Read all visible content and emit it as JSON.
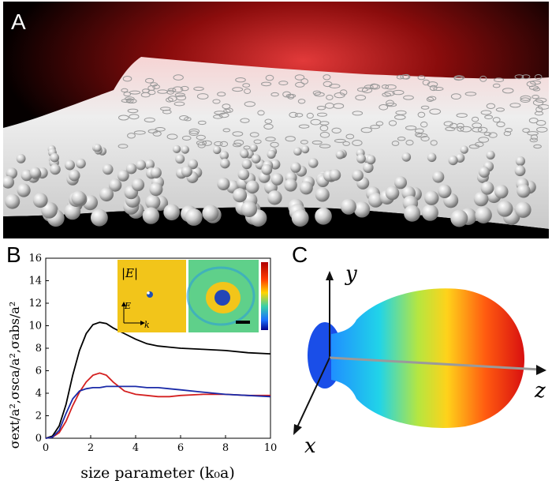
{
  "panel_a": {
    "letter": "A"
  },
  "panel_b": {
    "letter": "B",
    "inset": {
      "field_label": "|E|",
      "e_label": "E",
      "k_label": "k"
    },
    "chart_data": {
      "type": "line",
      "xlabel": "size parameter (k₀a)",
      "ylabel": "σext/a²,σsca/a²,σabs/a²",
      "xlim": [
        0,
        10
      ],
      "ylim": [
        0,
        16
      ],
      "x_ticks": [
        0,
        2,
        4,
        6,
        8,
        10
      ],
      "y_ticks": [
        0,
        2,
        4,
        6,
        8,
        10,
        12,
        14,
        16
      ],
      "grid": false,
      "series": [
        {
          "color": "#000000",
          "x": [
            0,
            0.3,
            0.6,
            0.9,
            1.2,
            1.5,
            1.8,
            2.1,
            2.4,
            2.7,
            3.0,
            3.5,
            4.0,
            4.5,
            5.0,
            5.5,
            6.0,
            7.0,
            8.0,
            9.0,
            10.0
          ],
          "values": [
            0,
            0.2,
            1.1,
            3.0,
            5.6,
            7.8,
            9.3,
            10.1,
            10.3,
            10.2,
            9.8,
            9.3,
            8.8,
            8.4,
            8.2,
            8.1,
            8.0,
            7.9,
            7.8,
            7.6,
            7.5
          ]
        },
        {
          "color": "#d42020",
          "x": [
            0,
            0.3,
            0.6,
            0.9,
            1.2,
            1.5,
            1.8,
            2.1,
            2.4,
            2.7,
            3.0,
            3.5,
            4.0,
            4.5,
            5.0,
            5.5,
            6.0,
            7.0,
            8.0,
            9.0,
            10.0
          ],
          "values": [
            0,
            0.1,
            0.5,
            1.5,
            2.9,
            4.1,
            5.0,
            5.6,
            5.8,
            5.6,
            5.0,
            4.2,
            3.9,
            3.8,
            3.7,
            3.7,
            3.8,
            3.9,
            3.9,
            3.8,
            3.8
          ]
        },
        {
          "color": "#1a2aa8",
          "x": [
            0,
            0.3,
            0.6,
            0.9,
            1.2,
            1.5,
            1.8,
            2.1,
            2.4,
            2.7,
            3.0,
            3.5,
            4.0,
            4.5,
            5.0,
            5.5,
            6.0,
            7.0,
            8.0,
            9.0,
            10.0
          ],
          "values": [
            0,
            0.1,
            0.7,
            2.2,
            3.5,
            4.2,
            4.4,
            4.5,
            4.5,
            4.6,
            4.6,
            4.6,
            4.6,
            4.5,
            4.5,
            4.4,
            4.3,
            4.1,
            3.9,
            3.8,
            3.7
          ]
        }
      ]
    }
  },
  "panel_c": {
    "letter": "C",
    "y_label": "y",
    "x_label": "x",
    "z_label": "z"
  }
}
